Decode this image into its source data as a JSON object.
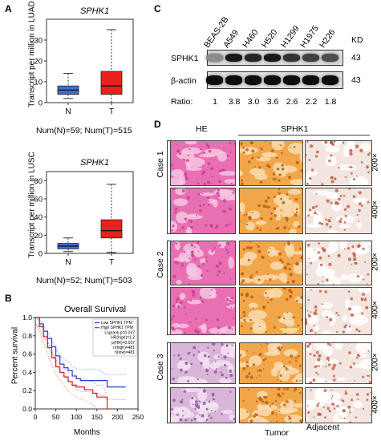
{
  "panel_a": {
    "letter": "A",
    "top": {
      "gene": "SPHK1",
      "ylabel": "Transcript per million in LUAD",
      "yticks": [
        "0",
        "10",
        "20",
        "30"
      ],
      "groups": [
        "N",
        "T"
      ],
      "footnote": "Num(N)=59; Num(T)=515"
    },
    "bottom": {
      "gene": "SPHK1",
      "ylabel": "Transcript per million in LUSC",
      "yticks": [
        "0",
        "20",
        "40",
        "60",
        "80"
      ],
      "groups": [
        "N",
        "T"
      ],
      "footnote": "Num(N)=52; Num(T)=503"
    },
    "colors": {
      "normal": "#3b6fd6",
      "tumor": "#e8221a"
    }
  },
  "panel_b": {
    "letter": "B",
    "title": "Overall Survival",
    "ylabel": "Percent survival",
    "xlabel": "Months",
    "xticks": [
      "0",
      "50",
      "100",
      "150",
      "200",
      "250"
    ],
    "yticks": [
      "0.0",
      "0.2",
      "0.4",
      "0.6",
      "0.8",
      "1.0"
    ],
    "legend": [
      "Low SPHK1 TPM",
      "High SPHK1 TPM",
      "Logrank p=0.037",
      "HR(high)=1.2",
      "p(HR)=0.037",
      "n(high)=481",
      "n(low)=481"
    ],
    "colors": {
      "low": "#1f3fd6",
      "high": "#e01b1b"
    }
  },
  "panel_c": {
    "letter": "C",
    "lanes": [
      "BEAS-2B",
      "A549",
      "H460",
      "H520",
      "H1299",
      "H1975",
      "H226"
    ],
    "kd_label": "KD",
    "rows": [
      {
        "label": "SPHK1",
        "kd": "43"
      },
      {
        "label": "β-actin",
        "kd": "43"
      }
    ],
    "ratio_label": "Ratio:",
    "ratios": [
      "1",
      "3.8",
      "3.0",
      "3.6",
      "2.6",
      "2.2",
      "1.8"
    ]
  },
  "panel_d": {
    "letter": "D",
    "col_he": "HE",
    "col_sphk1": "SPHK1",
    "cases": [
      "Case 1",
      "Case 2",
      "Case 3"
    ],
    "magnifications": [
      "200×",
      "400×"
    ],
    "bottom_tumor": "Tumor",
    "bottom_adjacent": "Adjacent"
  },
  "chart_data": [
    {
      "type": "box",
      "title": "SPHK1",
      "ylabel": "Transcript per million in LUAD",
      "categories": [
        "N",
        "T"
      ],
      "ylim": [
        0,
        40
      ],
      "boxes": [
        {
          "name": "N",
          "min": 2,
          "q1": 4,
          "median": 6,
          "q3": 8,
          "max": 14
        },
        {
          "name": "T",
          "min": 0,
          "q1": 4,
          "median": 8,
          "q3": 15,
          "max": 35
        }
      ]
    },
    {
      "type": "box",
      "title": "SPHK1",
      "ylabel": "Transcript per million in LUSC",
      "categories": [
        "N",
        "T"
      ],
      "ylim": [
        0,
        90
      ],
      "boxes": [
        {
          "name": "N",
          "min": 2,
          "q1": 5,
          "median": 8,
          "q3": 11,
          "max": 17
        },
        {
          "name": "T",
          "min": 1,
          "q1": 17,
          "median": 25,
          "q3": 37,
          "max": 76
        }
      ]
    },
    {
      "type": "line",
      "title": "Overall Survival",
      "xlabel": "Months",
      "ylabel": "Percent survival",
      "xlim": [
        0,
        250
      ],
      "ylim": [
        0,
        1
      ],
      "series": [
        {
          "name": "Low SPHK1 TPM",
          "x": [
            0,
            10,
            20,
            30,
            40,
            50,
            60,
            70,
            80,
            90,
            100,
            110,
            120,
            150,
            175,
            220
          ],
          "y": [
            1.0,
            0.93,
            0.85,
            0.77,
            0.68,
            0.58,
            0.49,
            0.45,
            0.42,
            0.36,
            0.33,
            0.31,
            0.31,
            0.31,
            0.24,
            0.24
          ]
        },
        {
          "name": "High SPHK1 TPM",
          "x": [
            0,
            10,
            20,
            30,
            40,
            50,
            60,
            70,
            80,
            90,
            100,
            120,
            140,
            150,
            165,
            175
          ],
          "y": [
            1.0,
            0.9,
            0.79,
            0.67,
            0.56,
            0.46,
            0.4,
            0.35,
            0.3,
            0.26,
            0.24,
            0.21,
            0.17,
            0.13,
            0.13,
            0.0
          ]
        }
      ]
    },
    {
      "type": "table",
      "title": "Ratio",
      "categories": [
        "BEAS-2B",
        "A549",
        "H460",
        "H520",
        "H1299",
        "H1975",
        "H226"
      ],
      "values": [
        1,
        3.8,
        3.0,
        3.6,
        2.6,
        2.2,
        1.8
      ]
    }
  ]
}
